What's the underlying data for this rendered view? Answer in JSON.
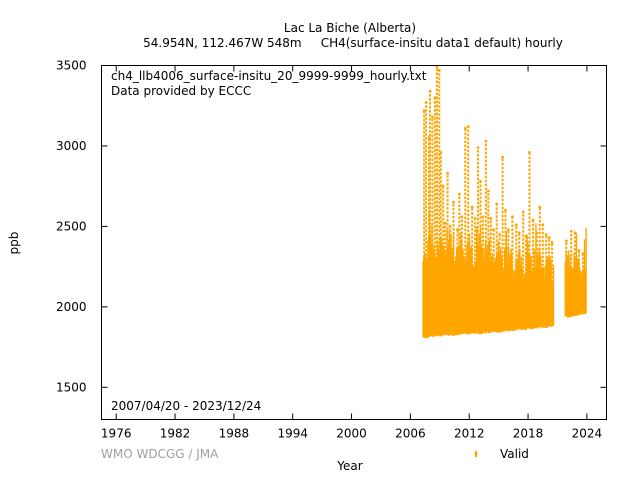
{
  "chart_data": {
    "type": "scatter",
    "title": "Lac La Biche (Alberta)",
    "subtitle": "54.954N, 112.467W 548m     CH4(surface-insitu data1 default) hourly",
    "file_label": "ch4_llb4006_surface-insitu_20_9999-9999_hourly.txt",
    "provider_label": "Data provided by ECCC",
    "date_range_label": "2007/04/20 - 2023/12/24",
    "credit": "WMO WDCGG / JMA",
    "xlabel": "Year",
    "ylabel": "ppb",
    "xlim": [
      1974.5,
      2026.0
    ],
    "ylim": [
      1300,
      3500
    ],
    "x_ticks": [
      1976,
      1982,
      1988,
      1994,
      2000,
      2006,
      2012,
      2018,
      2024
    ],
    "y_ticks": [
      1500,
      2000,
      2500,
      3000,
      3500
    ],
    "grid": false,
    "legend_position": "bottom-right",
    "series": [
      {
        "name": "Valid",
        "color": "#ffa500",
        "envelope": {
          "x": [
            2007.3,
            2007.6,
            2008.0,
            2008.5,
            2009.0,
            2009.5,
            2010.0,
            2010.5,
            2011.0,
            2011.5,
            2012.0,
            2012.5,
            2013.0,
            2013.5,
            2014.0,
            2014.5,
            2015.0,
            2015.5,
            2016.0,
            2016.5,
            2017.0,
            2017.5,
            2018.0,
            2018.5,
            2019.0,
            2019.5,
            2020.0,
            2020.6
          ],
          "low": [
            1820,
            1815,
            1820,
            1825,
            1825,
            1830,
            1830,
            1830,
            1835,
            1835,
            1840,
            1840,
            1840,
            1845,
            1845,
            1850,
            1850,
            1855,
            1860,
            1860,
            1865,
            1865,
            1870,
            1870,
            1875,
            1880,
            1880,
            1885
          ],
          "base_high": [
            2250,
            2300,
            2330,
            2300,
            2320,
            2300,
            2310,
            2280,
            2290,
            2280,
            2280,
            2270,
            2280,
            2260,
            2270,
            2250,
            2260,
            2240,
            2250,
            2230,
            2240,
            2220,
            2230,
            2210,
            2220,
            2210,
            2210,
            2200
          ]
        },
        "envelope_late": {
          "x": [
            2021.8,
            2022.2,
            2022.6,
            2023.0,
            2023.4,
            2023.95
          ],
          "low": [
            1950,
            1940,
            1950,
            1955,
            1960,
            1965
          ],
          "base_high": [
            2230,
            2220,
            2200,
            2210,
            2190,
            2200
          ]
        },
        "spikes": [
          {
            "x": 2007.4,
            "y": 3220
          },
          {
            "x": 2007.6,
            "y": 3270
          },
          {
            "x": 2007.9,
            "y": 3050
          },
          {
            "x": 2008.0,
            "y": 3340
          },
          {
            "x": 2008.25,
            "y": 3180
          },
          {
            "x": 2008.5,
            "y": 3300
          },
          {
            "x": 2008.7,
            "y": 3500
          },
          {
            "x": 2008.95,
            "y": 3470
          },
          {
            "x": 2009.1,
            "y": 2960
          },
          {
            "x": 2009.35,
            "y": 2750
          },
          {
            "x": 2009.55,
            "y": 2520
          },
          {
            "x": 2009.8,
            "y": 2830
          },
          {
            "x": 2010.05,
            "y": 2500
          },
          {
            "x": 2010.4,
            "y": 2650
          },
          {
            "x": 2010.8,
            "y": 2480
          },
          {
            "x": 2011.0,
            "y": 2700
          },
          {
            "x": 2011.25,
            "y": 2560
          },
          {
            "x": 2011.6,
            "y": 3110
          },
          {
            "x": 2011.9,
            "y": 3120
          },
          {
            "x": 2012.3,
            "y": 2620
          },
          {
            "x": 2012.6,
            "y": 2550
          },
          {
            "x": 2012.9,
            "y": 2990
          },
          {
            "x": 2013.15,
            "y": 2780
          },
          {
            "x": 2013.4,
            "y": 2560
          },
          {
            "x": 2013.7,
            "y": 3030
          },
          {
            "x": 2013.95,
            "y": 2720
          },
          {
            "x": 2014.2,
            "y": 2550
          },
          {
            "x": 2014.5,
            "y": 2480
          },
          {
            "x": 2014.8,
            "y": 2640
          },
          {
            "x": 2015.1,
            "y": 2450
          },
          {
            "x": 2015.4,
            "y": 2930
          },
          {
            "x": 2015.7,
            "y": 2600
          },
          {
            "x": 2016.0,
            "y": 2480
          },
          {
            "x": 2016.4,
            "y": 2560
          },
          {
            "x": 2016.8,
            "y": 2510
          },
          {
            "x": 2017.1,
            "y": 2460
          },
          {
            "x": 2017.5,
            "y": 2590
          },
          {
            "x": 2017.8,
            "y": 2440
          },
          {
            "x": 2018.15,
            "y": 2960
          },
          {
            "x": 2018.5,
            "y": 2540
          },
          {
            "x": 2018.9,
            "y": 2460
          },
          {
            "x": 2019.2,
            "y": 2620
          },
          {
            "x": 2019.5,
            "y": 2510
          },
          {
            "x": 2019.85,
            "y": 2450
          },
          {
            "x": 2020.15,
            "y": 2430
          },
          {
            "x": 2020.45,
            "y": 2400
          },
          {
            "x": 2021.9,
            "y": 2410
          },
          {
            "x": 2022.4,
            "y": 2470
          },
          {
            "x": 2022.8,
            "y": 2460
          },
          {
            "x": 2023.2,
            "y": 2350
          },
          {
            "x": 2023.6,
            "y": 2330
          }
        ]
      }
    ]
  }
}
